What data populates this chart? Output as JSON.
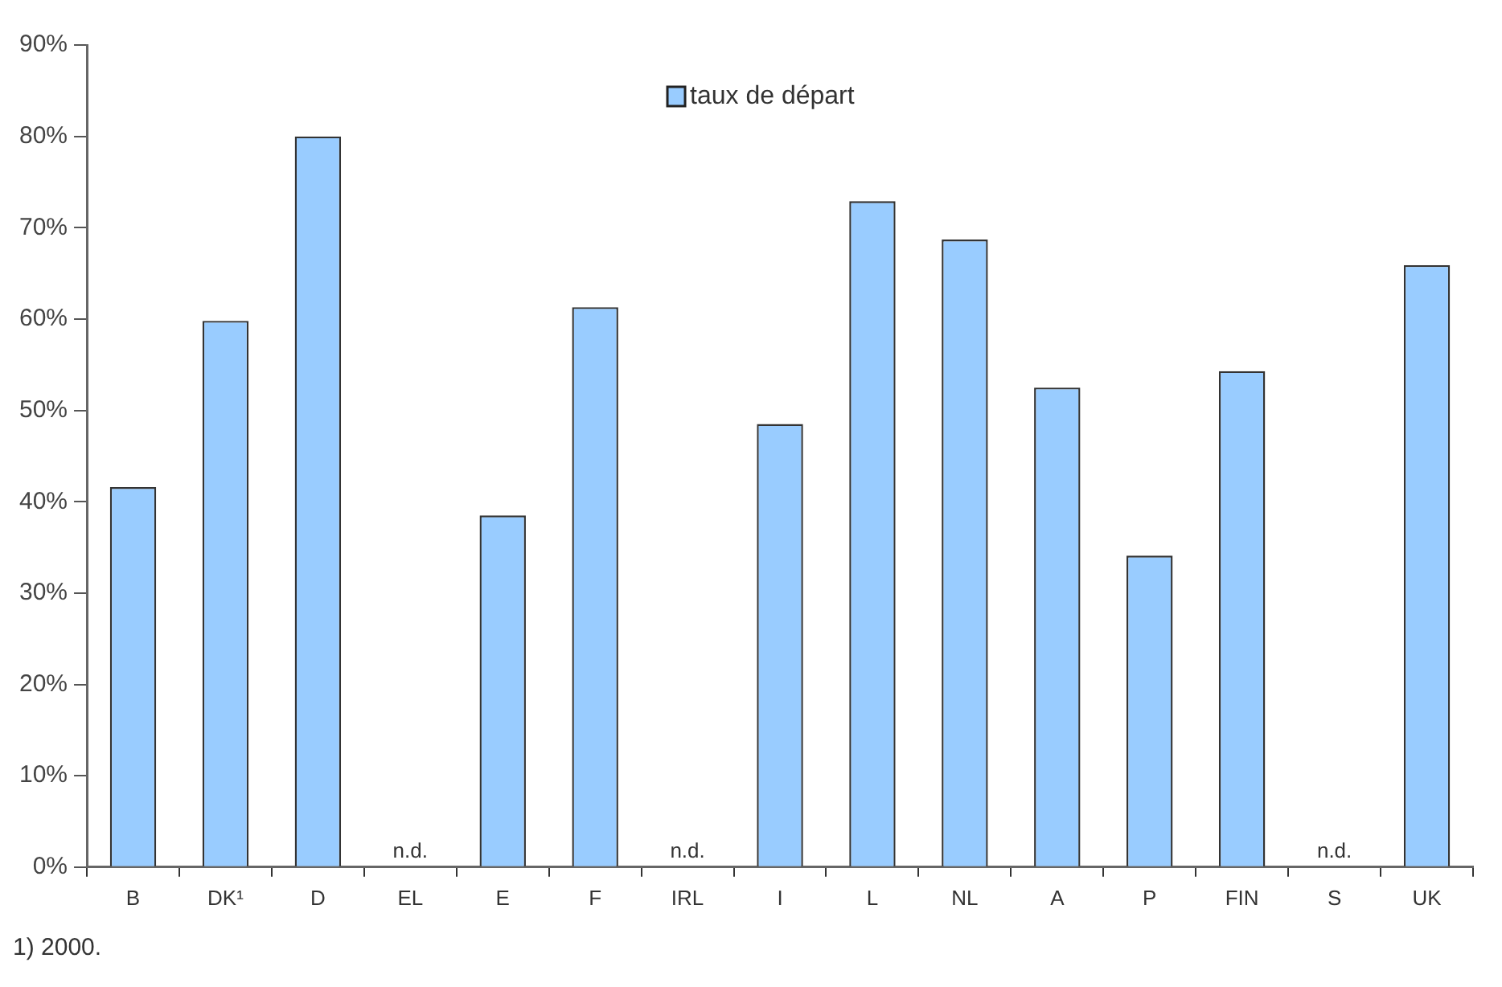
{
  "chart_data": {
    "type": "bar",
    "categories": [
      "B",
      "DK¹",
      "D",
      "EL",
      "E",
      "F",
      "IRL",
      "I",
      "L",
      "NL",
      "A",
      "P",
      "FIN",
      "S",
      "UK"
    ],
    "series": [
      {
        "name": "taux de départ",
        "color": "#99ccff",
        "values": [
          41.6,
          59.8,
          80,
          null,
          38.5,
          61.3,
          null,
          48.5,
          72.9,
          68.7,
          52.5,
          34.1,
          54.3,
          null,
          65.9
        ],
        "value_labels": [
          null,
          null,
          null,
          "n.d.",
          null,
          null,
          "n.d.",
          null,
          null,
          null,
          null,
          null,
          null,
          "n.d.",
          null
        ]
      }
    ],
    "ylim": [
      0,
      90
    ],
    "yticks": [
      {
        "value": 0,
        "label": "0%"
      },
      {
        "value": 10,
        "label": "10%"
      },
      {
        "value": 20,
        "label": "20%"
      },
      {
        "value": 30,
        "label": "30%"
      },
      {
        "value": 40,
        "label": "40%"
      },
      {
        "value": 50,
        "label": "50%"
      },
      {
        "value": 60,
        "label": "60%"
      },
      {
        "value": 70,
        "label": "70%"
      },
      {
        "value": 80,
        "label": "80%"
      },
      {
        "value": 90,
        "label": "90%"
      }
    ],
    "grid": false,
    "legend": "top",
    "annotations": [
      "1) 2000."
    ]
  }
}
